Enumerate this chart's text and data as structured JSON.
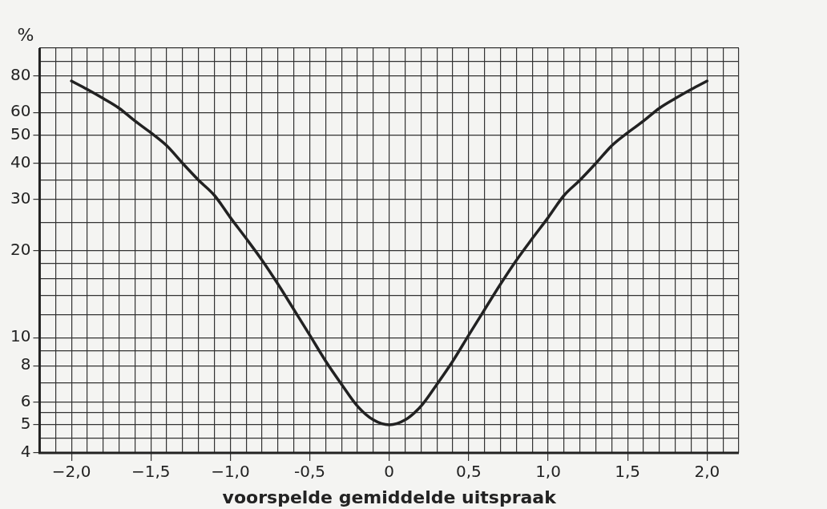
{
  "chart_data": {
    "type": "line",
    "xlabel": "voorspelde gemiddelde uitspraak",
    "ylabel": "%",
    "x": [
      -2.0,
      -1.9,
      -1.8,
      -1.7,
      -1.6,
      -1.5,
      -1.4,
      -1.3,
      -1.2,
      -1.1,
      -1.0,
      -0.9,
      -0.8,
      -0.7,
      -0.6,
      -0.5,
      -0.4,
      -0.3,
      -0.2,
      -0.1,
      0,
      0.1,
      0.2,
      0.3,
      0.4,
      0.5,
      0.6,
      0.7,
      0.8,
      0.9,
      1.0,
      1.1,
      1.2,
      1.3,
      1.4,
      1.5,
      1.6,
      1.7,
      1.8,
      1.9,
      2.0
    ],
    "series": [
      {
        "color": "#222222",
        "values": [
          77,
          72,
          67,
          62,
          56,
          51,
          46,
          40,
          35,
          31,
          26,
          22,
          18.5,
          15.3,
          12.5,
          10.2,
          8.3,
          6.9,
          5.8,
          5.2,
          5.0,
          5.2,
          5.8,
          6.9,
          8.3,
          10.2,
          12.5,
          15.3,
          18.5,
          22,
          26,
          31,
          35,
          40,
          46,
          51,
          56,
          62,
          67,
          72,
          77
        ]
      }
    ],
    "xlim": [
      -2.2,
      2.2
    ],
    "xticks": [
      {
        "value": -2.2,
        "label": null
      },
      {
        "value": -2.1,
        "label": null
      },
      {
        "value": -2.0,
        "label": "−2,0"
      },
      {
        "value": -1.9,
        "label": null
      },
      {
        "value": -1.8,
        "label": null
      },
      {
        "value": -1.7,
        "label": null
      },
      {
        "value": -1.6,
        "label": null
      },
      {
        "value": -1.5,
        "label": "−1,5"
      },
      {
        "value": -1.4,
        "label": null
      },
      {
        "value": -1.3,
        "label": null
      },
      {
        "value": -1.2,
        "label": null
      },
      {
        "value": -1.1,
        "label": null
      },
      {
        "value": -1.0,
        "label": "−1,0"
      },
      {
        "value": -0.9,
        "label": null
      },
      {
        "value": -0.8,
        "label": null
      },
      {
        "value": -0.7,
        "label": null
      },
      {
        "value": -0.6,
        "label": null
      },
      {
        "value": -0.5,
        "label": "-0,5"
      },
      {
        "value": -0.4,
        "label": null
      },
      {
        "value": -0.3,
        "label": null
      },
      {
        "value": -0.2,
        "label": null
      },
      {
        "value": -0.1,
        "label": null
      },
      0,
      {
        "value": 0.1,
        "label": null
      },
      {
        "value": 0.2,
        "label": null
      },
      {
        "value": 0.3,
        "label": null
      },
      {
        "value": 0.4,
        "label": null
      },
      {
        "value": 0.5,
        "label": "0,5"
      },
      {
        "value": 0.6,
        "label": null
      },
      {
        "value": 0.7,
        "label": null
      },
      {
        "value": 0.8,
        "label": null
      },
      {
        "value": 0.9,
        "label": null
      },
      {
        "value": 1.0,
        "label": "1,0"
      },
      {
        "value": 1.1,
        "label": null
      },
      {
        "value": 1.2,
        "label": null
      },
      {
        "value": 1.3,
        "label": null
      },
      {
        "value": 1.4,
        "label": null
      },
      {
        "value": 1.5,
        "label": "1,5"
      },
      {
        "value": 1.6,
        "label": null
      },
      {
        "value": 1.7,
        "label": null
      },
      {
        "value": 1.8,
        "label": null
      },
      {
        "value": 1.9,
        "label": null
      },
      {
        "value": 2.0,
        "label": "2,0"
      },
      {
        "value": 2.1,
        "label": null
      },
      {
        "value": 2.2,
        "label": null
      }
    ],
    "ylim": [
      4,
      100
    ],
    "yticks": [
      4,
      {
        "value": 4.5,
        "label": null
      },
      5,
      {
        "value": 5.5,
        "label": null
      },
      6,
      {
        "value": 7,
        "label": null
      },
      8,
      {
        "value": 9,
        "label": null
      },
      10,
      {
        "value": 12,
        "label": null
      },
      {
        "value": 14,
        "label": null
      },
      {
        "value": 16,
        "label": null
      },
      {
        "value": 18,
        "label": null
      },
      20,
      {
        "value": 25,
        "label": null
      },
      30,
      {
        "value": 35,
        "label": null
      },
      40,
      50,
      60,
      {
        "value": 70,
        "label": null
      },
      80,
      {
        "value": 90,
        "label": null
      },
      {
        "value": 100,
        "label": null
      }
    ],
    "log": "y",
    "grid": true,
    "legend": false,
    "marker": "none",
    "line_style": "solid"
  }
}
